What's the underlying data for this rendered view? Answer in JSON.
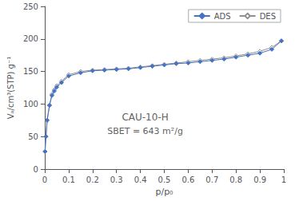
{
  "chart_data": {
    "type": "line",
    "xlabel": "p/p₀",
    "ylabel": "Vₐ/cm³(STP) g⁻¹",
    "series": [
      {
        "name": "ADS",
        "color": "#4472C4",
        "marker": "diamond",
        "x": [
          0.001,
          0.005,
          0.01,
          0.02,
          0.03,
          0.04,
          0.05,
          0.07,
          0.1,
          0.15,
          0.2,
          0.25,
          0.3,
          0.35,
          0.4,
          0.45,
          0.5,
          0.55,
          0.6,
          0.65,
          0.7,
          0.75,
          0.8,
          0.85,
          0.9,
          0.95,
          0.99
        ],
        "values": [
          27,
          50,
          75,
          98,
          113,
          120,
          126,
          133,
          143,
          148,
          151,
          152,
          153,
          154,
          156,
          158,
          160,
          162,
          163,
          165,
          167,
          169,
          172,
          175,
          178,
          184,
          197
        ]
      },
      {
        "name": "DES",
        "color": "#909090",
        "marker": "open diamond",
        "x": [
          0.001,
          0.005,
          0.01,
          0.02,
          0.03,
          0.04,
          0.05,
          0.07,
          0.1,
          0.15,
          0.2,
          0.25,
          0.3,
          0.35,
          0.4,
          0.45,
          0.5,
          0.55,
          0.6,
          0.65,
          0.7,
          0.75,
          0.8,
          0.85,
          0.9,
          0.95,
          0.99
        ],
        "values": [
          27,
          50,
          75,
          98,
          115,
          122,
          128,
          135,
          145,
          150,
          152,
          153,
          154,
          155,
          157,
          159,
          161,
          163,
          165,
          167,
          169,
          171,
          174,
          177,
          181,
          187,
          197
        ]
      }
    ],
    "xlim": [
      0,
      1.0
    ],
    "ylim": [
      0,
      250
    ],
    "xticks": [
      0,
      0.1,
      0.2,
      0.3,
      0.4,
      0.5,
      0.6,
      0.7,
      0.8,
      0.9,
      1
    ],
    "yticks": [
      0,
      50,
      100,
      150,
      200,
      250
    ],
    "annotations": [
      {
        "text": "CAU-10-H",
        "x": 0.42,
        "y": 80
      },
      {
        "text": "SBET = 643 m²/g",
        "x": 0.42,
        "y": 58
      }
    ],
    "legend": "upper right",
    "grid": false
  }
}
